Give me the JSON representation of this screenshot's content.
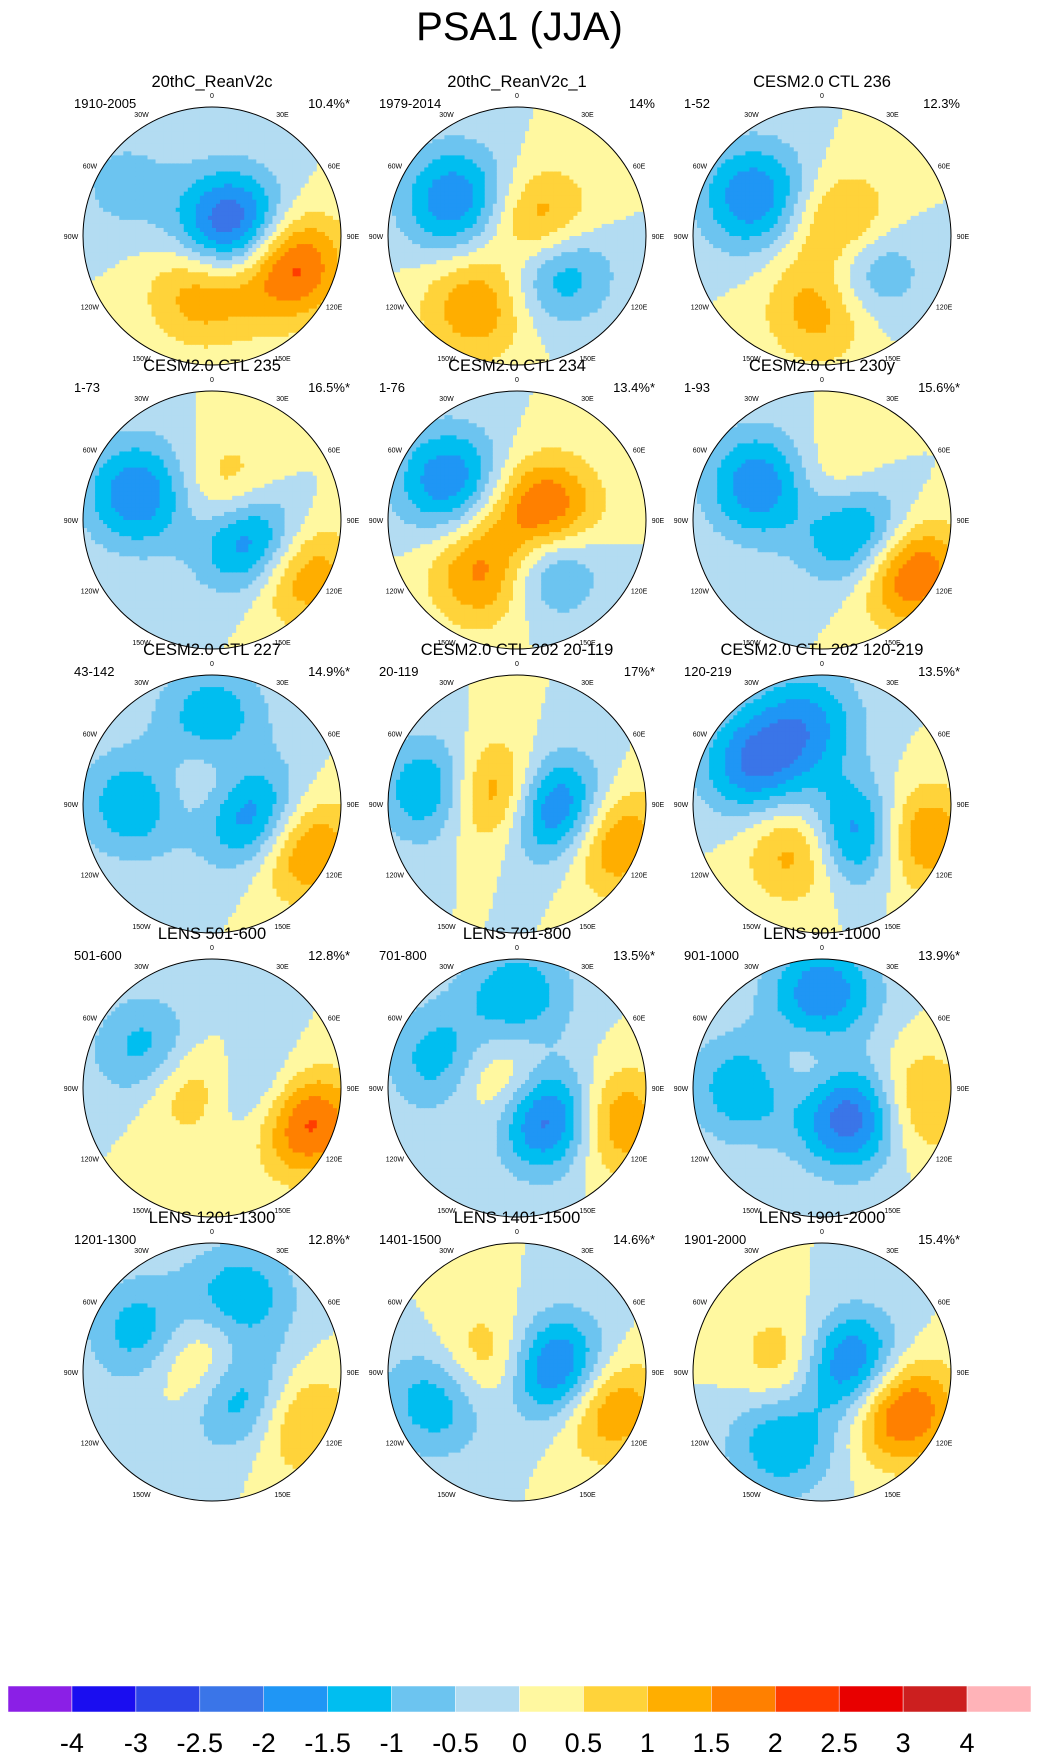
{
  "figure": {
    "title": "PSA1 (JJA)",
    "lon_labels": [
      "0",
      "30E",
      "60E",
      "90E",
      "120E",
      "150E",
      "180",
      "150W",
      "120W",
      "90W",
      "60W",
      "30W"
    ]
  },
  "panels": [
    {
      "title": "20thC_ReanV2c",
      "period": "1910-2005",
      "variance": "10.4%*",
      "centers": [
        {
          "lon": 110,
          "r": 0.62,
          "v": 2.5
        },
        {
          "lon": 70,
          "r": 0.18,
          "v": -3.0
        },
        {
          "lon": 190,
          "r": 0.42,
          "v": 1.5
        },
        {
          "lon": 300,
          "r": 0.78,
          "v": -0.7
        }
      ]
    },
    {
      "title": "20thC_ReanV2c_1",
      "period": "1979-2014",
      "variance": "14%",
      "centers": [
        {
          "lon": 80,
          "r": 0.2,
          "v": 2.5
        },
        {
          "lon": 125,
          "r": 0.35,
          "v": -2.5
        },
        {
          "lon": 210,
          "r": 0.62,
          "v": 1.5
        },
        {
          "lon": 300,
          "r": 0.55,
          "v": -2.0
        }
      ]
    },
    {
      "title": "CESM2.0 CTL 236",
      "period": "1-52",
      "variance": "12.3%",
      "centers": [
        {
          "lon": 90,
          "r": 0.18,
          "v": 2.5
        },
        {
          "lon": 125,
          "r": 0.35,
          "v": -2.5
        },
        {
          "lon": 180,
          "r": 0.55,
          "v": 1.5
        },
        {
          "lon": 300,
          "r": 0.6,
          "v": -2.0
        }
      ]
    },
    {
      "title": "CESM2.0 CTL 235",
      "period": "1-73",
      "variance": "16.5%*",
      "centers": [
        {
          "lon": 115,
          "r": 0.35,
          "v": -3.0
        },
        {
          "lon": 120,
          "r": 0.75,
          "v": 2.0
        },
        {
          "lon": 290,
          "r": 0.6,
          "v": -2.0
        },
        {
          "lon": 40,
          "r": 0.22,
          "v": 1.5
        }
      ]
    },
    {
      "title": "CESM2.0 CTL 234",
      "period": "1-76",
      "variance": "13.4%*",
      "centers": [
        {
          "lon": 85,
          "r": 0.2,
          "v": 3.0
        },
        {
          "lon": 145,
          "r": 0.35,
          "v": -2.5
        },
        {
          "lon": 210,
          "r": 0.45,
          "v": 2.0
        },
        {
          "lon": 300,
          "r": 0.6,
          "v": -2.0
        }
      ]
    },
    {
      "title": "CESM2.0 CTL 230y",
      "period": "1-93",
      "variance": "15.6%*",
      "centers": [
        {
          "lon": 110,
          "r": 0.32,
          "v": -2.5
        },
        {
          "lon": 120,
          "r": 0.75,
          "v": 2.5
        },
        {
          "lon": 300,
          "r": 0.55,
          "v": -2.0
        },
        {
          "lon": 20,
          "r": 0.28,
          "v": 1.0
        }
      ]
    },
    {
      "title": "CESM2.0 CTL 227",
      "period": "43-142",
      "variance": "14.9%*",
      "centers": [
        {
          "lon": 105,
          "r": 0.3,
          "v": -3.0
        },
        {
          "lon": 115,
          "r": 0.75,
          "v": 2.0
        },
        {
          "lon": 20,
          "r": 0.12,
          "v": 1.5
        },
        {
          "lon": 270,
          "r": 0.6,
          "v": -1.5
        },
        {
          "lon": 0,
          "r": 0.65,
          "v": -1.5
        }
      ]
    },
    {
      "title": "CESM2.0 CTL 202 20-119",
      "period": "20-119",
      "variance": "17%*",
      "centers": [
        {
          "lon": 100,
          "r": 0.3,
          "v": -3.0
        },
        {
          "lon": 110,
          "r": 0.75,
          "v": 2.0
        },
        {
          "lon": 290,
          "r": 0.2,
          "v": 2.5
        },
        {
          "lon": 280,
          "r": 0.62,
          "v": -2.0
        }
      ]
    },
    {
      "title": "CESM2.0 CTL 202 120-219",
      "period": "120-219",
      "variance": "13.5%*",
      "centers": [
        {
          "lon": 135,
          "r": 0.35,
          "v": -3.0
        },
        {
          "lon": 110,
          "r": 0.75,
          "v": 2.0
        },
        {
          "lon": 200,
          "r": 0.35,
          "v": 2.0
        },
        {
          "lon": 300,
          "r": 0.6,
          "v": -2.0
        },
        {
          "lon": 350,
          "r": 0.65,
          "v": -1.5
        }
      ]
    },
    {
      "title": "LENS 501-600",
      "period": "501-600",
      "variance": "12.8%*",
      "centers": [
        {
          "lon": 110,
          "r": 0.75,
          "v": 2.5
        },
        {
          "lon": 280,
          "r": 0.15,
          "v": 1.5
        },
        {
          "lon": 300,
          "r": 0.55,
          "v": -1.5
        },
        {
          "lon": 100,
          "r": 0.35,
          "v": -1.5
        }
      ]
    },
    {
      "title": "LENS 701-800",
      "period": "701-800",
      "variance": "13.5%*",
      "centers": [
        {
          "lon": 130,
          "r": 0.35,
          "v": -3.0
        },
        {
          "lon": 110,
          "r": 0.75,
          "v": 2.0
        },
        {
          "lon": 300,
          "r": 0.15,
          "v": 1.5
        },
        {
          "lon": 290,
          "r": 0.6,
          "v": -1.5
        },
        {
          "lon": 0,
          "r": 0.7,
          "v": -1.5
        }
      ]
    },
    {
      "title": "LENS 901-1000",
      "period": "901-1000",
      "variance": "13.9%*",
      "centers": [
        {
          "lon": 130,
          "r": 0.3,
          "v": -3.0
        },
        {
          "lon": 100,
          "r": 0.7,
          "v": 1.5
        },
        {
          "lon": 0,
          "r": 0.72,
          "v": -2.0
        },
        {
          "lon": 270,
          "r": 0.6,
          "v": -1.5
        },
        {
          "lon": 330,
          "r": 0.12,
          "v": 1.0
        }
      ]
    },
    {
      "title": "LENS 1201-1300",
      "period": "1201-1300",
      "variance": "12.8%*",
      "centers": [
        {
          "lon": 130,
          "r": 0.32,
          "v": -2.0
        },
        {
          "lon": 120,
          "r": 0.72,
          "v": 1.5
        },
        {
          "lon": 320,
          "r": 0.15,
          "v": 1.5
        },
        {
          "lon": 300,
          "r": 0.6,
          "v": -1.5
        },
        {
          "lon": 20,
          "r": 0.6,
          "v": -1.5
        }
      ]
    },
    {
      "title": "LENS 1401-1500",
      "period": "1401-1500",
      "variance": "14.6%*",
      "centers": [
        {
          "lon": 90,
          "r": 0.3,
          "v": -3.0
        },
        {
          "lon": 110,
          "r": 0.7,
          "v": 2.0
        },
        {
          "lon": 290,
          "r": 0.18,
          "v": 1.5
        },
        {
          "lon": 250,
          "r": 0.65,
          "v": -1.5
        }
      ]
    },
    {
      "title": "LENS 1901-2000",
      "period": "1901-2000",
      "variance": "15.4%*",
      "centers": [
        {
          "lon": 80,
          "r": 0.2,
          "v": -3.0
        },
        {
          "lon": 115,
          "r": 0.65,
          "v": 2.5
        },
        {
          "lon": 290,
          "r": 0.2,
          "v": 1.5
        },
        {
          "lon": 210,
          "r": 0.62,
          "v": -1.5
        }
      ]
    }
  ],
  "colorbar": {
    "labels": [
      "-4",
      "-3",
      "-2.5",
      "-2",
      "-1.5",
      "-1",
      "-0.5",
      "0",
      "0.5",
      "1",
      "1.5",
      "2",
      "2.5",
      "3",
      "4"
    ],
    "levels": [
      -4,
      -3,
      -2.5,
      -2,
      -1.5,
      -1,
      -0.5,
      0,
      0.5,
      1,
      1.5,
      2,
      2.5,
      3,
      4
    ],
    "colors": [
      "#8b1fe6",
      "#1a0df0",
      "#2d45e8",
      "#3a75e8",
      "#1f96f5",
      "#00bef0",
      "#6cc4f0",
      "#b3dcf2",
      "#fff8a0",
      "#ffd33a",
      "#ffae00",
      "#ff8000",
      "#ff3d00",
      "#e80000",
      "#cc1f1f",
      "#ffb3b8"
    ]
  }
}
